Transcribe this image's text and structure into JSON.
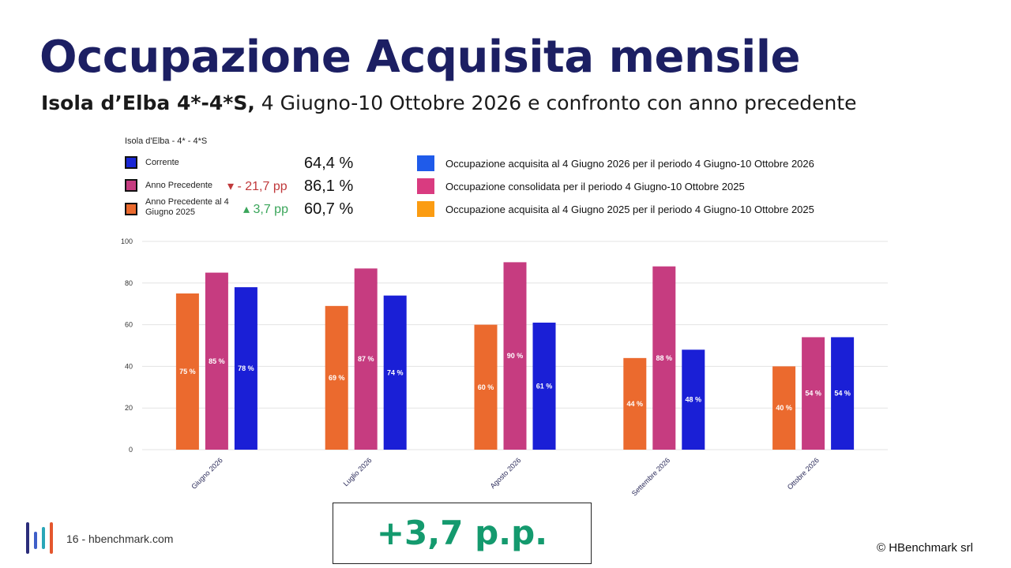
{
  "title": "Occupazione Acquisita mensile",
  "subtitle": {
    "bold": "Isola d’Elba 4*-4*S,",
    "rest": " 4 Giugno-10 Ottobre 2026 e confronto con anno precedente"
  },
  "chart_caption": "Isola d'Elba - 4* - 4*S",
  "kpis": [
    {
      "label": "Corrente",
      "color": "#1a27d6",
      "delta": "",
      "value": "64,4 %"
    },
    {
      "label": "Anno Precedente",
      "color": "#c63c80",
      "delta": "- 21,7 pp",
      "delta_dir": "down",
      "delta_color": "#c0393b",
      "value": "86,1 %"
    },
    {
      "label": "Anno Precedente al 4 Giugno 2025",
      "color": "#eb6a2e",
      "delta": "3,7 pp",
      "delta_dir": "up",
      "delta_color": "#3aa55a",
      "value": "60,7 %"
    }
  ],
  "legend": [
    {
      "label": "Occupazione acquisita al 4 Giugno 2026 per il periodo 4 Giugno-10 Ottobre 2026",
      "color": "#1f5bea"
    },
    {
      "label": "Occupazione consolidata per il periodo 4 Giugno-10 Ottobre 2025",
      "color": "#d93b80"
    },
    {
      "label": "Occupazione acquisita al 4 Giugno 2025 per il periodo 4 Giugno-10 Ottobre 2025",
      "color": "#fb9c12"
    }
  ],
  "chart_data": {
    "type": "bar",
    "categories": [
      "Giugno 2026",
      "Luglio 2026",
      "Agosto 2026",
      "Settembre 2026",
      "Ottobre 2026"
    ],
    "series": [
      {
        "color": "#eb6a2e",
        "values": [
          75,
          69,
          60,
          44,
          40
        ],
        "labels": [
          "75 %",
          "69 %",
          "60 %",
          "44 %",
          "40 %"
        ]
      },
      {
        "color": "#c63c80",
        "values": [
          85,
          87,
          90,
          88,
          54
        ],
        "labels": [
          "85 %",
          "87 %",
          "90 %",
          "88 %",
          "54 %"
        ]
      },
      {
        "color": "#1a1fd6",
        "values": [
          78,
          74,
          61,
          48,
          54
        ],
        "labels": [
          "78 %",
          "74 %",
          "61 %",
          "48 %",
          "54 %"
        ]
      }
    ],
    "ylim": [
      0,
      100
    ],
    "yticks": [
      "0",
      "20",
      "40",
      "60",
      "80",
      "100"
    ],
    "grid": true
  },
  "footer": {
    "page": "16 - hbenchmark.com",
    "copyright": "© HBenchmark srl"
  },
  "highlight": "+3,7 p.p.",
  "logo_colors": [
    "#2b2d7a",
    "#3f5fc8",
    "#2aa6b8",
    "#e4572e"
  ]
}
